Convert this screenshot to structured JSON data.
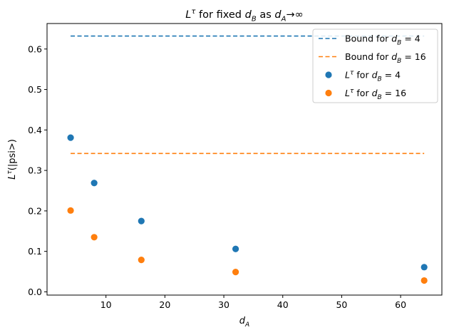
{
  "chart_data": {
    "type": "scatter",
    "title": "Lτ for fixed dB as dA→∞",
    "xlabel": "dA",
    "ylabel": "Lτ(|psi>)",
    "xlim": [
      0.0,
      67.0
    ],
    "ylim": [
      -0.008,
      0.663
    ],
    "xticks": [
      10,
      20,
      30,
      40,
      50,
      60
    ],
    "yticks": [
      0.0,
      0.1,
      0.2,
      0.3,
      0.4,
      0.5,
      0.6
    ],
    "grid": false,
    "legend_position": "top-right",
    "lines": [
      {
        "name": "Bound for dB = 4",
        "style": "dashed",
        "color": "#1f77b4",
        "x": [
          4,
          64
        ],
        "y": [
          0.632,
          0.632
        ]
      },
      {
        "name": "Bound for dB = 16",
        "style": "dashed",
        "color": "#ff7f0e",
        "x": [
          4,
          64
        ],
        "y": [
          0.342,
          0.342
        ]
      }
    ],
    "series": [
      {
        "name": "Lτ for dB = 4",
        "color": "#1f77b4",
        "x": [
          4,
          8,
          16,
          32,
          64
        ],
        "y": [
          0.381,
          0.269,
          0.175,
          0.106,
          0.061
        ]
      },
      {
        "name": "Lτ for dB = 16",
        "color": "#ff7f0e",
        "x": [
          4,
          8,
          16,
          32,
          64
        ],
        "y": [
          0.201,
          0.135,
          0.079,
          0.049,
          0.028
        ]
      }
    ]
  }
}
